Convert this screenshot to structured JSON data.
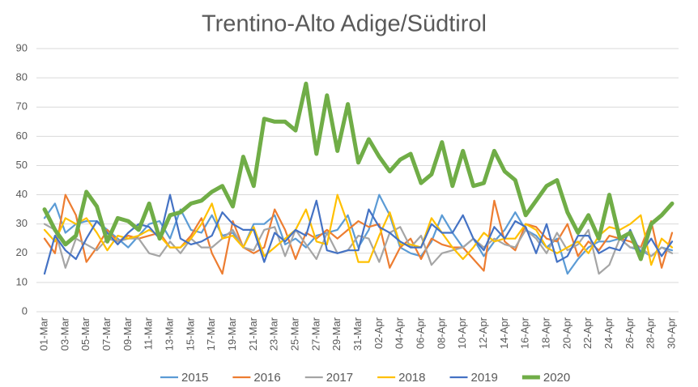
{
  "chart_data": {
    "type": "line",
    "title": "Trentino-Alto Adige/Südtirol",
    "categories": [
      "01-Mar",
      null,
      "03-Mar",
      null,
      "05-Mar",
      null,
      "07-Mar",
      null,
      "09-Mar",
      null,
      "11-Mar",
      null,
      "13-Mar",
      null,
      "15-Mar",
      null,
      "17-Mar",
      null,
      "19-Mar",
      null,
      "21-Mar",
      null,
      "23-Mar",
      null,
      "25-Mar",
      null,
      "27-Mar",
      null,
      "29-Mar",
      null,
      "31-Mar",
      null,
      "02-Apr",
      null,
      "04-Apr",
      null,
      "06-Apr",
      null,
      "08-Apr",
      null,
      "10-Apr",
      null,
      "12-Apr",
      null,
      "14-Apr",
      null,
      "16-Apr",
      null,
      "18-Apr",
      null,
      "20-Apr",
      null,
      "22-Apr",
      null,
      "24-Apr",
      null,
      "26-Apr",
      null,
      "28-Apr",
      null,
      "30-Apr"
    ],
    "series": [
      {
        "name": "2015",
        "color": "#5b9bd5",
        "width": 2.2,
        "values": [
          32,
          37,
          27,
          30,
          31,
          31,
          28,
          25,
          22,
          26,
          30,
          31,
          25,
          35,
          28,
          27,
          33,
          26,
          27,
          22,
          30,
          30,
          33,
          23,
          25,
          22,
          26,
          27,
          28,
          33,
          22,
          28,
          40,
          33,
          22,
          20,
          19,
          24,
          33,
          27,
          22,
          25,
          19,
          24,
          28,
          34,
          28,
          26,
          22,
          25,
          13,
          18,
          22,
          24,
          24,
          25,
          22,
          21,
          19,
          22,
          21
        ]
      },
      {
        "name": "2016",
        "color": "#ed7d31",
        "width": 2.2,
        "values": [
          25,
          20,
          40,
          33,
          17,
          22,
          28,
          24,
          26,
          25,
          26,
          27,
          22,
          22,
          26,
          32,
          20,
          13,
          31,
          22,
          20,
          22,
          35,
          28,
          18,
          27,
          25,
          28,
          25,
          28,
          31,
          29,
          30,
          15,
          22,
          25,
          18,
          25,
          23,
          22,
          22,
          18,
          14,
          38,
          24,
          21,
          30,
          29,
          25,
          24,
          30,
          19,
          24,
          21,
          26,
          25,
          24,
          22,
          31,
          15,
          27
        ]
      },
      {
        "name": "2017",
        "color": "#a5a5a5",
        "width": 2.2,
        "values": [
          30,
          28,
          15,
          25,
          23,
          21,
          25,
          24,
          25,
          25,
          20,
          19,
          24,
          20,
          25,
          22,
          22,
          25,
          28,
          22,
          21,
          28,
          29,
          19,
          28,
          23,
          18,
          27,
          20,
          21,
          26,
          25,
          17,
          27,
          29,
          22,
          26,
          16,
          20,
          21,
          22,
          25,
          22,
          25,
          23,
          22,
          28,
          25,
          20,
          27,
          21,
          23,
          28,
          13,
          16,
          25,
          22,
          22,
          19,
          22,
          20
        ]
      },
      {
        "name": "2018",
        "color": "#ffc000",
        "width": 2.2,
        "values": [
          28,
          24,
          32,
          30,
          32,
          27,
          21,
          26,
          25,
          26,
          28,
          26,
          22,
          22,
          25,
          30,
          37,
          25,
          26,
          22,
          29,
          19,
          22,
          25,
          28,
          35,
          24,
          23,
          40,
          30,
          17,
          17,
          26,
          34,
          23,
          23,
          22,
          32,
          27,
          22,
          18,
          22,
          27,
          24,
          25,
          25,
          30,
          28,
          22,
          20,
          22,
          24,
          20,
          26,
          29,
          28,
          30,
          33,
          16,
          25,
          22
        ]
      },
      {
        "name": "2019",
        "color": "#4472c4",
        "width": 2.2,
        "values": [
          13,
          26,
          21,
          18,
          25,
          31,
          27,
          23,
          27,
          30,
          29,
          25,
          40,
          25,
          23,
          24,
          26,
          34,
          30,
          28,
          28,
          17,
          27,
          24,
          28,
          26,
          38,
          21,
          20,
          21,
          21,
          35,
          29,
          27,
          24,
          22,
          22,
          30,
          27,
          27,
          33,
          25,
          21,
          29,
          25,
          31,
          29,
          20,
          30,
          17,
          19,
          26,
          26,
          20,
          22,
          21,
          28,
          20,
          25,
          19,
          24
        ]
      },
      {
        "name": "2020",
        "color": "#70ad47",
        "width": 5,
        "values": [
          35,
          28,
          23,
          26,
          41,
          36,
          24,
          32,
          31,
          28,
          37,
          25,
          33,
          34,
          37,
          38,
          41,
          43,
          36,
          53,
          43,
          66,
          65,
          65,
          62,
          78,
          54,
          74,
          55,
          71,
          51,
          59,
          53,
          48,
          52,
          54,
          44,
          47,
          58,
          43,
          55,
          43,
          44,
          55,
          48,
          45,
          33,
          38,
          43,
          45,
          34,
          27,
          33,
          25,
          40,
          25,
          27,
          18,
          30,
          33,
          37
        ]
      }
    ],
    "ylim": [
      0,
      90
    ],
    "yticks": [
      0,
      10,
      20,
      30,
      40,
      50,
      60,
      70,
      80,
      90
    ],
    "grid": true
  }
}
